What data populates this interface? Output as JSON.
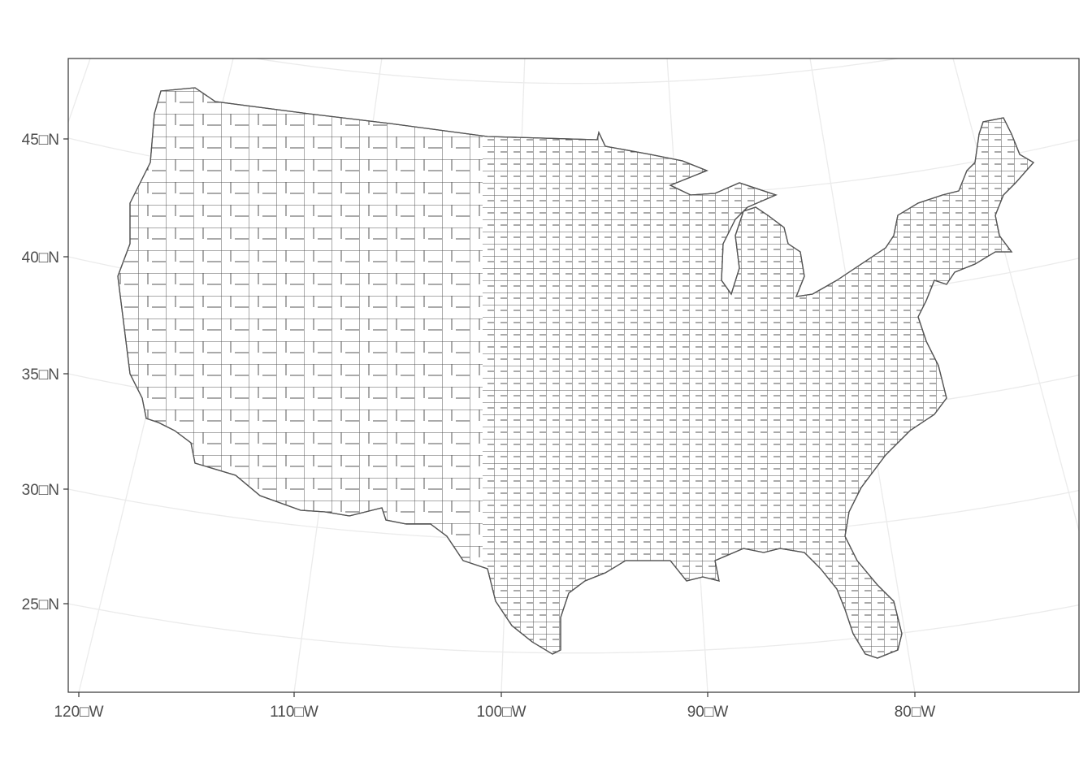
{
  "map": {
    "projection": "Albers equal-area (conic)",
    "region": "Contiguous United States, county boundaries",
    "x_axis": {
      "ticks": [
        "120□W",
        "110□W",
        "100□W",
        "90□W",
        "80□W"
      ],
      "values": [
        -120,
        -110,
        -100,
        -90,
        -80
      ]
    },
    "y_axis": {
      "ticks": [
        "45□N",
        "40□N",
        "35□N",
        "30□N",
        "25□N"
      ],
      "values": [
        45,
        40,
        35,
        30,
        25
      ]
    },
    "colors": {
      "county_fill": "#ffffff",
      "county_border": "#555555",
      "graticule": "#ebebeb",
      "panel_border": "#333333",
      "tick_text": "#4d4d4d"
    }
  }
}
